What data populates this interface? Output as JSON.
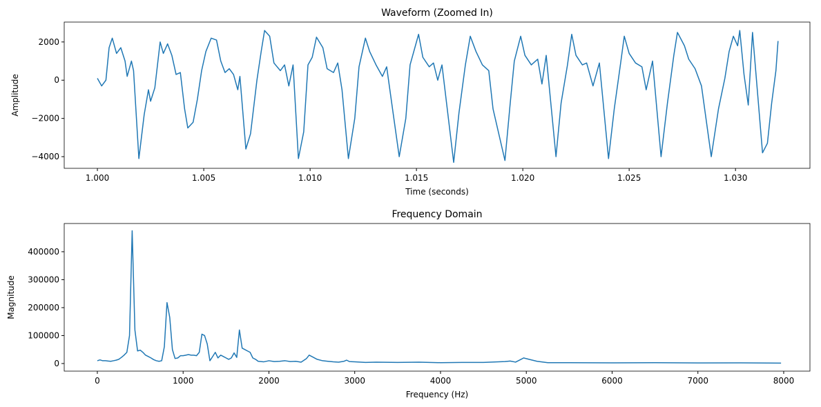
{
  "chart_data": [
    {
      "type": "line",
      "title": "Waveform (Zoomed In)",
      "x_label": "Time (seconds)",
      "y_label": "Amplitude",
      "color": "#1f77b4",
      "xlim": [
        0.99844,
        1.0335
      ],
      "ylim": [
        -4610,
        3040
      ],
      "xticks": [
        {
          "value": 1.0,
          "label": "1.000"
        },
        1.005,
        {
          "value": 1.01,
          "label": "1.010"
        },
        1.015,
        {
          "value": 1.02,
          "label": "1.020"
        },
        1.025,
        {
          "value": 1.03,
          "label": "1.030"
        }
      ],
      "yticks": [
        {
          "value": -4000,
          "label": "−4000"
        },
        {
          "value": -2000,
          "label": "−2000"
        },
        0,
        2000
      ],
      "x": [
        1.0,
        1.0002,
        1.0004,
        1.00055,
        1.0007,
        1.0009,
        1.0011,
        1.0013,
        1.0014,
        1.0016,
        1.0017,
        1.00195,
        1.0022,
        1.0024,
        1.0025,
        1.0027,
        1.00295,
        1.0031,
        1.0033,
        1.0035,
        1.0037,
        1.0039,
        1.0041,
        1.00425,
        1.0045,
        1.0047,
        1.0049,
        1.0051,
        1.00535,
        1.0056,
        1.0058,
        1.006,
        1.0062,
        1.0064,
        1.0066,
        1.0067,
        1.00698,
        1.0072,
        1.0075,
        1.0077,
        1.00786,
        1.0081,
        1.0083,
        1.0086,
        1.0088,
        1.009,
        1.0092,
        1.00945,
        1.0097,
        1.0099,
        1.0101,
        1.0103,
        1.0106,
        1.0108,
        1.0111,
        1.0113,
        1.0115,
        1.0118,
        1.0121,
        1.0123,
        1.0126,
        1.0128,
        1.0131,
        1.0134,
        1.0136,
        1.0139,
        1.01419,
        1.0145,
        1.0147,
        1.0151,
        1.0153,
        1.0156,
        1.0158,
        1.016,
        1.0162,
        1.01675,
        1.017,
        1.0173,
        1.01753,
        1.0178,
        1.0181,
        1.0184,
        1.0186,
        1.01916,
        1.0194,
        1.0196,
        1.0199,
        1.0201,
        1.0204,
        1.0207,
        1.0209,
        1.0211,
        1.02156,
        1.0218,
        1.0221,
        1.0223,
        1.0225,
        1.0228,
        1.023,
        1.0233,
        1.0236,
        1.02403,
        1.0243,
        1.0246,
        1.02477,
        1.025,
        1.0253,
        1.0256,
        1.0258,
        1.0261,
        1.0265,
        1.0268,
        1.0271,
        1.02727,
        1.0276,
        1.0278,
        1.0281,
        1.0284,
        1.02886,
        1.0292,
        1.0295,
        1.0297,
        1.0299,
        1.0301,
        1.0302,
        1.0304,
        1.0306,
        1.0308,
        1.03127,
        1.0315,
        1.0317,
        1.0319,
        1.032
      ],
      "values": [
        100,
        -300,
        0,
        1700,
        2200,
        1400,
        1700,
        1000,
        200,
        1000,
        500,
        -4100,
        -1800,
        -500,
        -1100,
        -400,
        2000,
        1400,
        1900,
        1300,
        300,
        400,
        -1500,
        -2500,
        -2200,
        -1000,
        500,
        1500,
        2200,
        2100,
        1000,
        400,
        600,
        300,
        -500,
        200,
        -3600,
        -2800,
        0,
        1500,
        2600,
        2300,
        900,
        500,
        800,
        -300,
        800,
        -4100,
        -2700,
        800,
        1200,
        2250,
        1700,
        600,
        400,
        900,
        -500,
        -4100,
        -2000,
        700,
        2200,
        1500,
        800,
        200,
        700,
        -1700,
        -4000,
        -2000,
        800,
        2400,
        1200,
        700,
        900,
        0,
        800,
        -4300,
        -1700,
        800,
        2300,
        1500,
        800,
        500,
        -1500,
        -4200,
        -1300,
        1000,
        2300,
        1300,
        800,
        1100,
        -200,
        1300,
        -4000,
        -1200,
        800,
        2400,
        1300,
        800,
        900,
        -300,
        900,
        -4100,
        -1500,
        900,
        2300,
        1400,
        900,
        700,
        -500,
        1000,
        -4000,
        -1200,
        1300,
        2500,
        1800,
        1100,
        600,
        -300,
        -4000,
        -1500,
        100,
        1500,
        2300,
        1800,
        2600,
        300,
        -1300,
        2500,
        -3800,
        -3300,
        -1200,
        500,
        2050
      ]
    },
    {
      "type": "line",
      "title": "Frequency Domain",
      "x_label": "Frequency (Hz)",
      "y_label": "Magnitude",
      "color": "#1f77b4",
      "xlim": [
        -386,
        8306
      ],
      "ylim": [
        -27200,
        501000
      ],
      "xticks": [
        0,
        1000,
        2000,
        3000,
        4000,
        5000,
        6000,
        7000,
        8000
      ],
      "yticks": [
        0,
        100000,
        200000,
        300000,
        400000
      ],
      "x": [
        0,
        31,
        62,
        94,
        125,
        156,
        188,
        219,
        250,
        281,
        312,
        344,
        375,
        406,
        438,
        469,
        500,
        531,
        562,
        594,
        625,
        656,
        688,
        719,
        750,
        781,
        812,
        844,
        875,
        906,
        938,
        969,
        1000,
        1031,
        1062,
        1094,
        1125,
        1156,
        1188,
        1219,
        1250,
        1281,
        1312,
        1344,
        1375,
        1406,
        1438,
        1469,
        1500,
        1531,
        1562,
        1594,
        1625,
        1656,
        1688,
        1719,
        1750,
        1781,
        1812,
        1844,
        1875,
        1938,
        2000,
        2062,
        2125,
        2188,
        2250,
        2312,
        2375,
        2438,
        2469,
        2500,
        2562,
        2625,
        2688,
        2750,
        2812,
        2875,
        2906,
        2938,
        3000,
        3125,
        3250,
        3500,
        3750,
        4000,
        4250,
        4500,
        4750,
        4812,
        4875,
        4938,
        4969,
        5031,
        5125,
        5250,
        5500,
        6000,
        6500,
        7000,
        7500,
        7969
      ],
      "values": [
        10000,
        13000,
        10000,
        10000,
        9000,
        8000,
        10000,
        12000,
        15000,
        22000,
        30000,
        40000,
        100000,
        475000,
        120000,
        45000,
        48000,
        40000,
        30000,
        25000,
        20000,
        14000,
        10000,
        8000,
        10000,
        60000,
        218000,
        165000,
        50000,
        18000,
        20000,
        28000,
        28000,
        30000,
        32000,
        30000,
        30000,
        28000,
        40000,
        105000,
        100000,
        70000,
        10000,
        25000,
        40000,
        20000,
        30000,
        25000,
        20000,
        15000,
        20000,
        38000,
        22000,
        120000,
        55000,
        50000,
        45000,
        40000,
        20000,
        15000,
        8000,
        6000,
        10000,
        7000,
        8000,
        10000,
        7000,
        8000,
        5000,
        18000,
        30000,
        25000,
        15000,
        10000,
        8000,
        6000,
        5000,
        8000,
        12000,
        7000,
        6000,
        4000,
        5000,
        4000,
        5000,
        3000,
        4000,
        4000,
        7000,
        9000,
        5000,
        15000,
        20000,
        15000,
        8000,
        3000,
        3000,
        2500,
        3000,
        2000,
        2500,
        1500
      ]
    }
  ]
}
